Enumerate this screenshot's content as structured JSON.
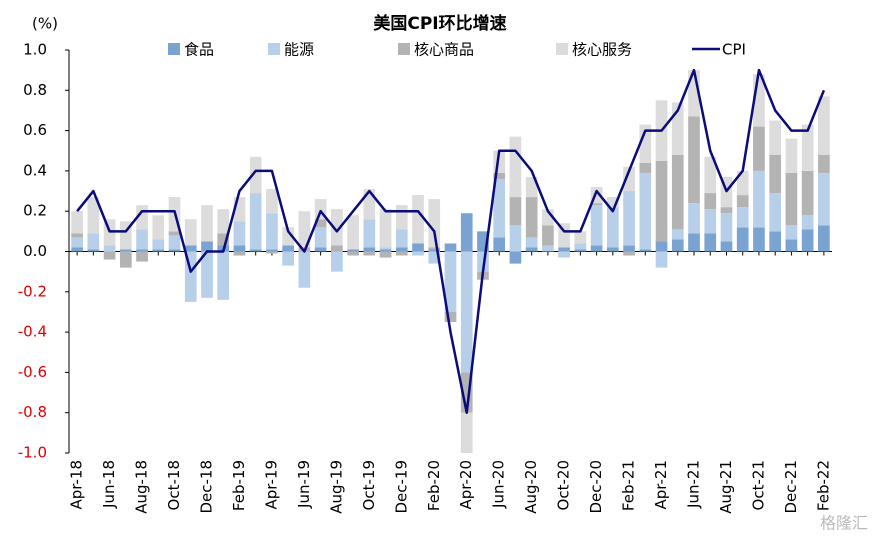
{
  "chart_data": {
    "type": "bar",
    "stacked": true,
    "title": "美国CPI环比增速",
    "y_label": "(%)",
    "watermark": "格隆汇",
    "categories": [
      "Apr-18",
      null,
      "Jun-18",
      null,
      "Aug-18",
      null,
      "Oct-18",
      null,
      "Dec-18",
      null,
      "Feb-19",
      null,
      "Apr-19",
      null,
      "Jun-19",
      null,
      "Aug-19",
      null,
      "Oct-19",
      null,
      "Dec-19",
      null,
      "Feb-20",
      null,
      "Apr-20",
      null,
      "Jun-20",
      null,
      "Aug-20",
      null,
      "Oct-20",
      null,
      "Dec-20",
      null,
      "Feb-21",
      null,
      "Apr-21",
      null,
      "Jun-21",
      null,
      "Aug-21",
      null,
      "Oct-21",
      null,
      "Dec-21",
      null,
      "Feb-22"
    ],
    "series": [
      {
        "name": "食品",
        "color": "#7aa3d2",
        "values": [
          0.02,
          0.01,
          0.0,
          0.01,
          0.01,
          0.01,
          0.01,
          0.03,
          0.05,
          0.03,
          0.03,
          0.01,
          0.01,
          0.03,
          0.0,
          0.02,
          0.0,
          0.01,
          0.02,
          0.01,
          0.02,
          0.04,
          0.01,
          0.04,
          0.19,
          0.1,
          0.07,
          -0.06,
          0.02,
          0.0,
          0.02,
          0.01,
          0.03,
          0.02,
          0.03,
          0.01,
          0.05,
          0.06,
          0.09,
          0.09,
          0.05,
          0.12,
          0.12,
          0.1,
          0.06,
          0.11,
          0.13
        ]
      },
      {
        "name": "能源",
        "color": "#b8cfea",
        "values": [
          0.05,
          0.08,
          0.03,
          0.0,
          0.1,
          0.05,
          0.07,
          -0.25,
          -0.23,
          -0.24,
          0.12,
          0.28,
          0.18,
          -0.07,
          -0.18,
          0.1,
          -0.1,
          0.0,
          0.14,
          0.01,
          0.09,
          -0.02,
          -0.06,
          -0.3,
          -0.6,
          -0.1,
          0.29,
          0.13,
          0.05,
          0.03,
          -0.03,
          0.03,
          0.2,
          0.2,
          0.27,
          0.38,
          -0.08,
          0.05,
          0.15,
          0.12,
          0.14,
          0.1,
          0.28,
          0.19,
          0.07,
          0.07,
          0.26
        ]
      },
      {
        "name": "核心商品",
        "color": "#b3b3b3",
        "values": [
          0.02,
          0.0,
          -0.04,
          -0.08,
          -0.05,
          0.0,
          0.02,
          0.0,
          0.0,
          0.06,
          -0.02,
          0.0,
          -0.01,
          0.0,
          0.02,
          0.04,
          0.03,
          -0.02,
          -0.02,
          -0.03,
          -0.02,
          0.0,
          0.01,
          -0.05,
          -0.2,
          -0.04,
          0.03,
          0.14,
          0.2,
          0.1,
          0.0,
          0.0,
          0.01,
          0.0,
          -0.02,
          0.05,
          0.4,
          0.37,
          0.43,
          0.08,
          0.03,
          0.06,
          0.22,
          0.19,
          0.26,
          0.22,
          0.09
        ]
      },
      {
        "name": "核心服务",
        "color": "#dcdcdc",
        "values": [
          0.11,
          0.18,
          0.13,
          0.14,
          0.12,
          0.12,
          0.17,
          0.13,
          0.18,
          0.12,
          0.12,
          0.18,
          0.12,
          0.09,
          0.18,
          0.1,
          0.18,
          0.17,
          0.15,
          0.19,
          0.12,
          0.24,
          0.24,
          0.0,
          -0.2,
          0.0,
          0.11,
          0.3,
          0.1,
          0.08,
          0.12,
          0.06,
          0.08,
          0.05,
          0.12,
          0.19,
          0.3,
          0.26,
          0.23,
          0.18,
          0.15,
          0.12,
          0.26,
          0.17,
          0.17,
          0.23,
          0.29
        ]
      },
      {
        "name": "CPI",
        "type": "line",
        "color": "#0b0b7a",
        "values": [
          0.2,
          0.3,
          0.1,
          0.1,
          0.2,
          0.2,
          0.2,
          -0.1,
          0.0,
          0.0,
          0.3,
          0.4,
          0.4,
          0.1,
          0.0,
          0.2,
          0.1,
          0.2,
          0.3,
          0.2,
          0.2,
          0.2,
          0.1,
          -0.4,
          -0.8,
          -0.1,
          0.5,
          0.5,
          0.4,
          0.2,
          0.1,
          0.1,
          0.3,
          0.2,
          0.4,
          0.6,
          0.6,
          0.7,
          0.9,
          0.5,
          0.3,
          0.4,
          0.9,
          0.7,
          0.6,
          0.6,
          0.8
        ]
      }
    ],
    "ylim": [
      -1,
      1
    ],
    "yticks": [
      {
        "value": 1,
        "label": "1.0"
      },
      0.8,
      0.6,
      0.4,
      0.2,
      {
        "value": 0,
        "label": "0.0"
      },
      -0.2,
      -0.4,
      -0.6,
      -0.8,
      {
        "value": -1,
        "label": "-1.0"
      }
    ],
    "negative_tick_color": "#e00000",
    "legend": "top"
  }
}
